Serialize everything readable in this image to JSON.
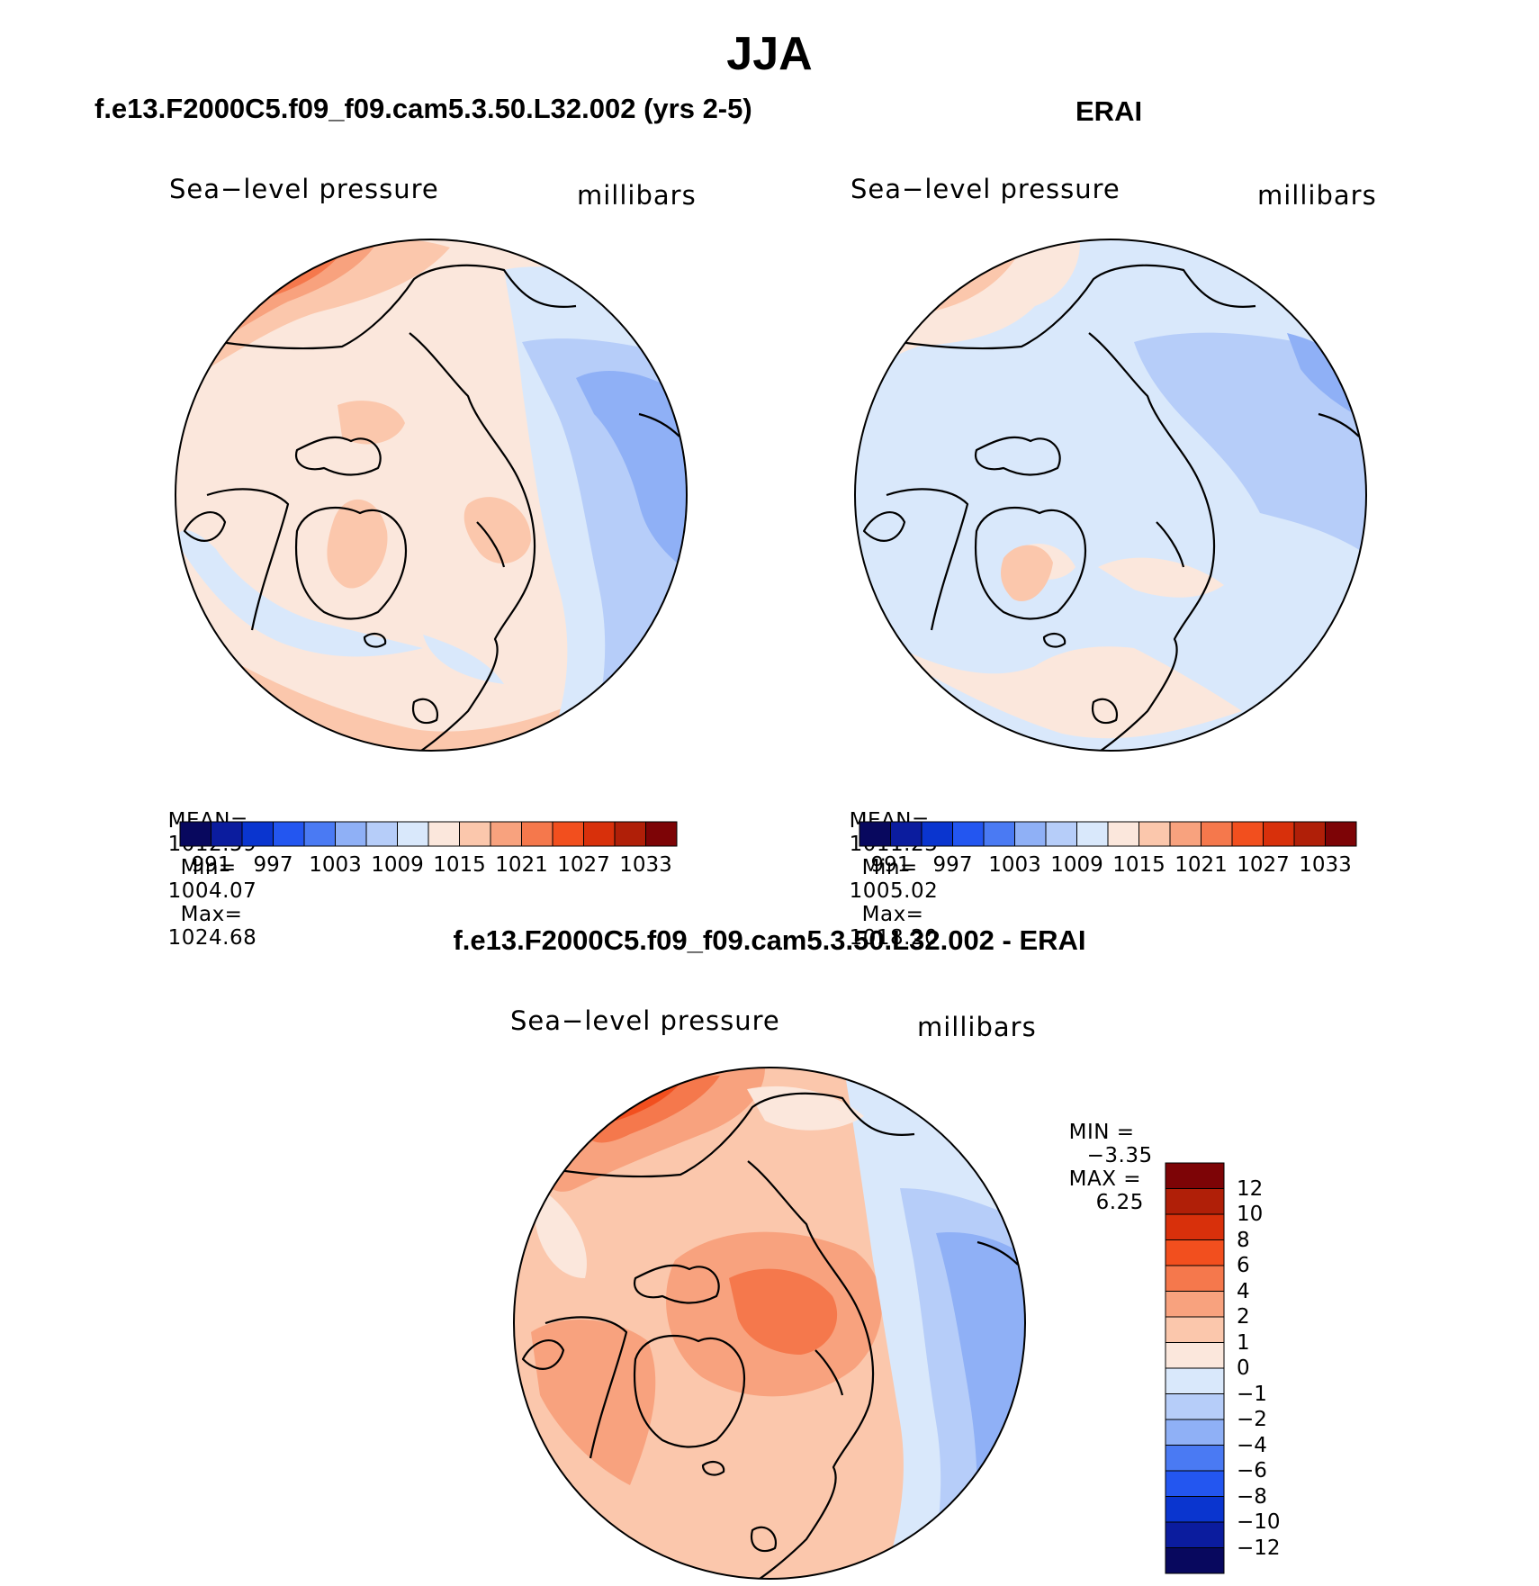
{
  "figure": {
    "title": "JJA"
  },
  "panels": [
    {
      "title": "f.e13.F2000C5.f09_f09.cam5.3.50.L32.002 (yrs 2-5)",
      "variable": "Sea−level pressure",
      "units": "millibars",
      "stats": {
        "mean_label": "MEAN=",
        "mean": "1012.59",
        "min_label": "Min=",
        "min": "1004.07",
        "max_label": "Max=",
        "max": "1024.68"
      }
    },
    {
      "title": "ERAI",
      "variable": "Sea−level pressure",
      "units": "millibars",
      "stats": {
        "mean_label": "MEAN=",
        "mean": "1011.23",
        "min_label": "Min=",
        "min": "1005.02",
        "max_label": "Max=",
        "max": "1018.20"
      }
    },
    {
      "title": "f.e13.F2000C5.f09_f09.cam5.3.50.L32.002 - ERAI",
      "variable": "Sea−level pressure",
      "units": "millibars",
      "stats": {
        "min_label": "MIN =",
        "min": "−3.35",
        "max_label": "MAX =",
        "max": "6.25"
      }
    }
  ],
  "colorbars": {
    "pressure": {
      "colors": [
        "#08085e",
        "#0b1c9e",
        "#0a35cf",
        "#2356f0",
        "#4a7af3",
        "#8fb0f6",
        "#b6cdf9",
        "#d9e8fb",
        "#fbe7dc",
        "#fbc7ac",
        "#f8a27e",
        "#f5784c",
        "#f24f1e",
        "#d8300b",
        "#b01f08",
        "#7d0406"
      ],
      "labels": [
        "991",
        "997",
        "1003",
        "1009",
        "1015",
        "1021",
        "1027",
        "1033"
      ]
    },
    "difference": {
      "colors_top_to_bottom": [
        "#7d0406",
        "#b01f08",
        "#d8300b",
        "#f24f1e",
        "#f5784c",
        "#f8a27e",
        "#fbc7ac",
        "#fbe7dc",
        "#d9e8fb",
        "#b6cdf9",
        "#8fb0f6",
        "#4a7af3",
        "#2356f0",
        "#0a35cf",
        "#0b1c9e",
        "#08085e"
      ],
      "labels": [
        "12",
        "10",
        "8",
        "6",
        "4",
        "2",
        "1",
        "0",
        "−1",
        "−2",
        "−4",
        "−6",
        "−8",
        "−10",
        "−12"
      ]
    }
  },
  "chart_data": [
    {
      "type": "heatmap",
      "projection": "north-polar-stereographic",
      "title": "f.e13.F2000C5.f09_f09.cam5.3.50.L32.002 (yrs 2-5)",
      "field": "Sea−level pressure",
      "units": "millibars",
      "mean": 1012.59,
      "min": 1004.07,
      "max": 1024.68,
      "contour_levels": [
        991,
        994,
        997,
        1000,
        1003,
        1006,
        1009,
        1012,
        1015,
        1018,
        1021,
        1024,
        1027,
        1030,
        1033
      ]
    },
    {
      "type": "heatmap",
      "projection": "north-polar-stereographic",
      "title": "ERAI",
      "field": "Sea−level pressure",
      "units": "millibars",
      "mean": 1011.23,
      "min": 1005.02,
      "max": 1018.2,
      "contour_levels": [
        991,
        994,
        997,
        1000,
        1003,
        1006,
        1009,
        1012,
        1015,
        1018,
        1021,
        1024,
        1027,
        1030,
        1033
      ]
    },
    {
      "type": "heatmap",
      "projection": "north-polar-stereographic",
      "title": "f.e13.F2000C5.f09_f09.cam5.3.50.L32.002 - ERAI",
      "field": "Sea−level pressure",
      "units": "millibars",
      "min": -3.35,
      "max": 6.25,
      "contour_levels": [
        -12,
        -10,
        -8,
        -6,
        -4,
        -2,
        -1,
        0,
        1,
        2,
        4,
        6,
        8,
        10,
        12
      ]
    }
  ]
}
